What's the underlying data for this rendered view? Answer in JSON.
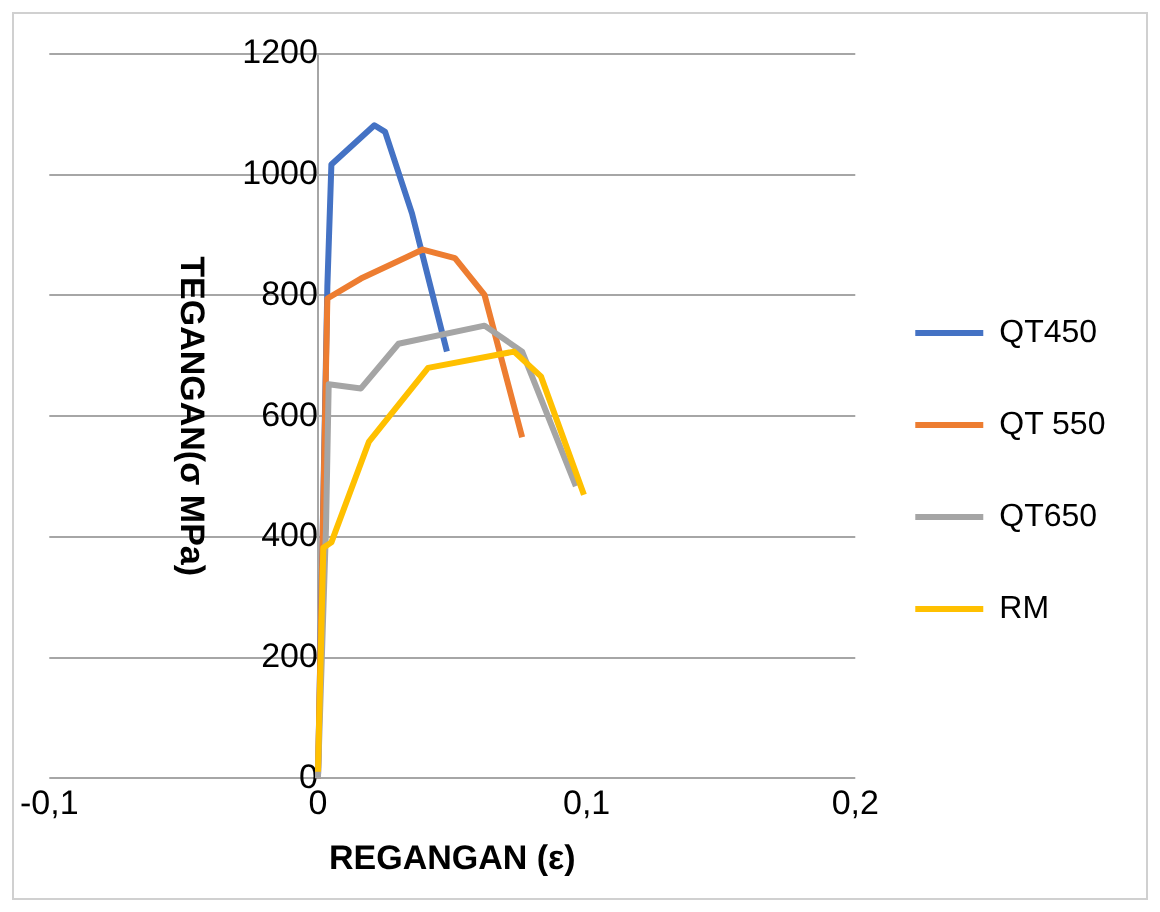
{
  "chart_data": {
    "type": "line",
    "xlabel": "REGANGAN (ε)",
    "ylabel": "TEGANGAN(σ MPa)",
    "xlim": [
      -0.1,
      0.2
    ],
    "xticks": [
      {
        "value": -0.1,
        "label": "-0,1"
      },
      0,
      {
        "value": 0.1,
        "label": "0,1"
      },
      {
        "value": 0.2,
        "label": "0,2"
      }
    ],
    "ylim": [
      0,
      1200
    ],
    "yticks": [
      0,
      200,
      400,
      600,
      800,
      1000,
      1200
    ],
    "grid": "y",
    "legend": "right",
    "marker": "none",
    "line_style": "solid",
    "series": [
      {
        "name": "QT450",
        "color": "#4472c4",
        "x": [
          0,
          0.0035,
          0.005,
          0.021,
          0.025,
          0.035,
          0.048
        ],
        "values": [
          0,
          815,
          1017,
          1082,
          1071,
          936,
          707
        ]
      },
      {
        "name": "QT 550",
        "color": "#ed7d31",
        "x": [
          0,
          0.0035,
          0.016,
          0.039,
          0.051,
          0.062,
          0.076
        ],
        "values": [
          0,
          795,
          828,
          876,
          862,
          801,
          565
        ]
      },
      {
        "name": "QT650",
        "color": "#a5a5a5",
        "x": [
          0,
          0.003,
          0.004,
          0.016,
          0.03,
          0.062,
          0.076,
          0.096
        ],
        "values": [
          0,
          416,
          653,
          646,
          720,
          750,
          707,
          484
        ]
      },
      {
        "name": "RM",
        "color": "#ffc000",
        "x": [
          0,
          0.002,
          0.005,
          0.019,
          0.041,
          0.073,
          0.083,
          0.099
        ],
        "values": [
          11,
          382,
          391,
          558,
          680,
          707,
          666,
          470
        ]
      }
    ]
  }
}
